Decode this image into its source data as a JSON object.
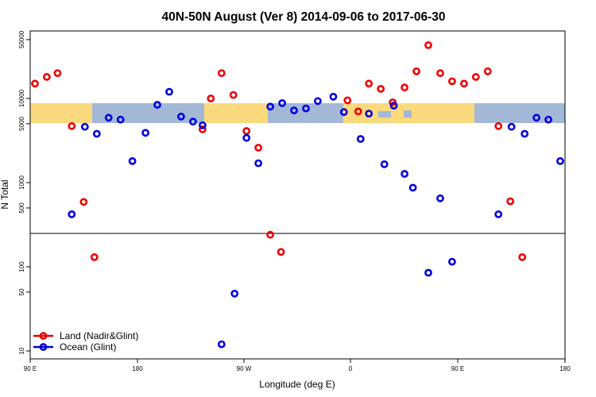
{
  "chart_data": {
    "type": "scatter",
    "title": "40N-50N August (Ver 8)   2014-09-06 to 2017-06-30",
    "xlabel": "Longitude (deg E)",
    "ylabel": "N Total",
    "x_scale": "longitude wrapped from 90 E",
    "y_scale": "log",
    "x_ticks": [
      {
        "lon": 90,
        "label": "90 E"
      },
      {
        "lon": 180,
        "label": "180"
      },
      {
        "lon": -90,
        "label": "90 W"
      },
      {
        "lon": 0,
        "label": "0"
      },
      {
        "lon": 90,
        "label": "90 E"
      },
      {
        "lon": 180,
        "label": "180"
      }
    ],
    "y_ticks": [
      {
        "value": 10,
        "label": "10"
      },
      {
        "value": 50,
        "label": "50"
      },
      {
        "value": 100,
        "label": "100"
      },
      {
        "value": 500,
        "label": "500"
      },
      {
        "value": 1000,
        "label": "1000"
      },
      {
        "value": 5000,
        "label": "5000"
      },
      {
        "value": 10000,
        "label": "10000"
      },
      {
        "value": 50000,
        "label": "50000"
      }
    ],
    "hline": 230,
    "grid": false,
    "legend_position": "bottom-left",
    "map_strip": {
      "y_from": 5000,
      "y_to": 8500,
      "ocean_color": "#a2b8d6",
      "land_color": "#fbd97d"
    },
    "series": [
      {
        "name": "Land (Nadir&Glint)",
        "color": "#ee0000",
        "points": [
          {
            "lon": 94,
            "y": 15000
          },
          {
            "lon": 104,
            "y": 18000
          },
          {
            "lon": 113,
            "y": 20000
          },
          {
            "lon": 125,
            "y": 4700
          },
          {
            "lon": 135,
            "y": 590
          },
          {
            "lon": 144,
            "y": 130
          },
          {
            "lon": -125,
            "y": 4300
          },
          {
            "lon": -118,
            "y": 10000
          },
          {
            "lon": -109,
            "y": 20000
          },
          {
            "lon": -99,
            "y": 11000
          },
          {
            "lon": -88,
            "y": 4100
          },
          {
            "lon": -78,
            "y": 2600
          },
          {
            "lon": -68,
            "y": 240
          },
          {
            "lon": -59,
            "y": 150
          },
          {
            "lon": -3,
            "y": 9500
          },
          {
            "lon": 6,
            "y": 7000
          },
          {
            "lon": 15,
            "y": 15000
          },
          {
            "lon": 25,
            "y": 13000
          },
          {
            "lon": 35,
            "y": 9000
          },
          {
            "lon": 45,
            "y": 13500
          },
          {
            "lon": 55,
            "y": 21000
          },
          {
            "lon": 65,
            "y": 43000
          },
          {
            "lon": 75,
            "y": 20000
          },
          {
            "lon": 85,
            "y": 16000
          },
          {
            "lon": 95,
            "y": 15000
          },
          {
            "lon": 105,
            "y": 18000
          },
          {
            "lon": 115,
            "y": 21000
          },
          {
            "lon": 124,
            "y": 4700
          },
          {
            "lon": 134,
            "y": 600
          },
          {
            "lon": 144,
            "y": 130
          }
        ]
      },
      {
        "name": "Ocean (Glint)",
        "color": "#0000dd",
        "points": [
          {
            "lon": 125,
            "y": 420
          },
          {
            "lon": 136,
            "y": 4600
          },
          {
            "lon": 146,
            "y": 3800
          },
          {
            "lon": 156,
            "y": 5900
          },
          {
            "lon": 166,
            "y": 5600
          },
          {
            "lon": 176,
            "y": 1800
          },
          {
            "lon": -173,
            "y": 3900
          },
          {
            "lon": -163,
            "y": 8400
          },
          {
            "lon": -153,
            "y": 12000
          },
          {
            "lon": -143,
            "y": 6100
          },
          {
            "lon": -133,
            "y": 5300
          },
          {
            "lon": -125,
            "y": 4800
          },
          {
            "lon": -109,
            "y": 12
          },
          {
            "lon": -98,
            "y": 48
          },
          {
            "lon": -88,
            "y": 3400
          },
          {
            "lon": -78,
            "y": 1700
          },
          {
            "lon": -68,
            "y": 8000
          },
          {
            "lon": -58,
            "y": 8800
          },
          {
            "lon": -48,
            "y": 7200
          },
          {
            "lon": -38,
            "y": 7600
          },
          {
            "lon": -28,
            "y": 9300
          },
          {
            "lon": -15,
            "y": 10500
          },
          {
            "lon": -6,
            "y": 6900
          },
          {
            "lon": 8,
            "y": 3300
          },
          {
            "lon": 15,
            "y": 6600
          },
          {
            "lon": 28,
            "y": 1650
          },
          {
            "lon": 36,
            "y": 8200
          },
          {
            "lon": 45,
            "y": 1270
          },
          {
            "lon": 52,
            "y": 870
          },
          {
            "lon": 65,
            "y": 85
          },
          {
            "lon": 75,
            "y": 650
          },
          {
            "lon": 85,
            "y": 115
          },
          {
            "lon": 124,
            "y": 420
          },
          {
            "lon": 135,
            "y": 4600
          },
          {
            "lon": 146,
            "y": 3800
          },
          {
            "lon": 156,
            "y": 5900
          },
          {
            "lon": 166,
            "y": 5600
          },
          {
            "lon": 176,
            "y": 1800
          }
        ]
      }
    ]
  }
}
